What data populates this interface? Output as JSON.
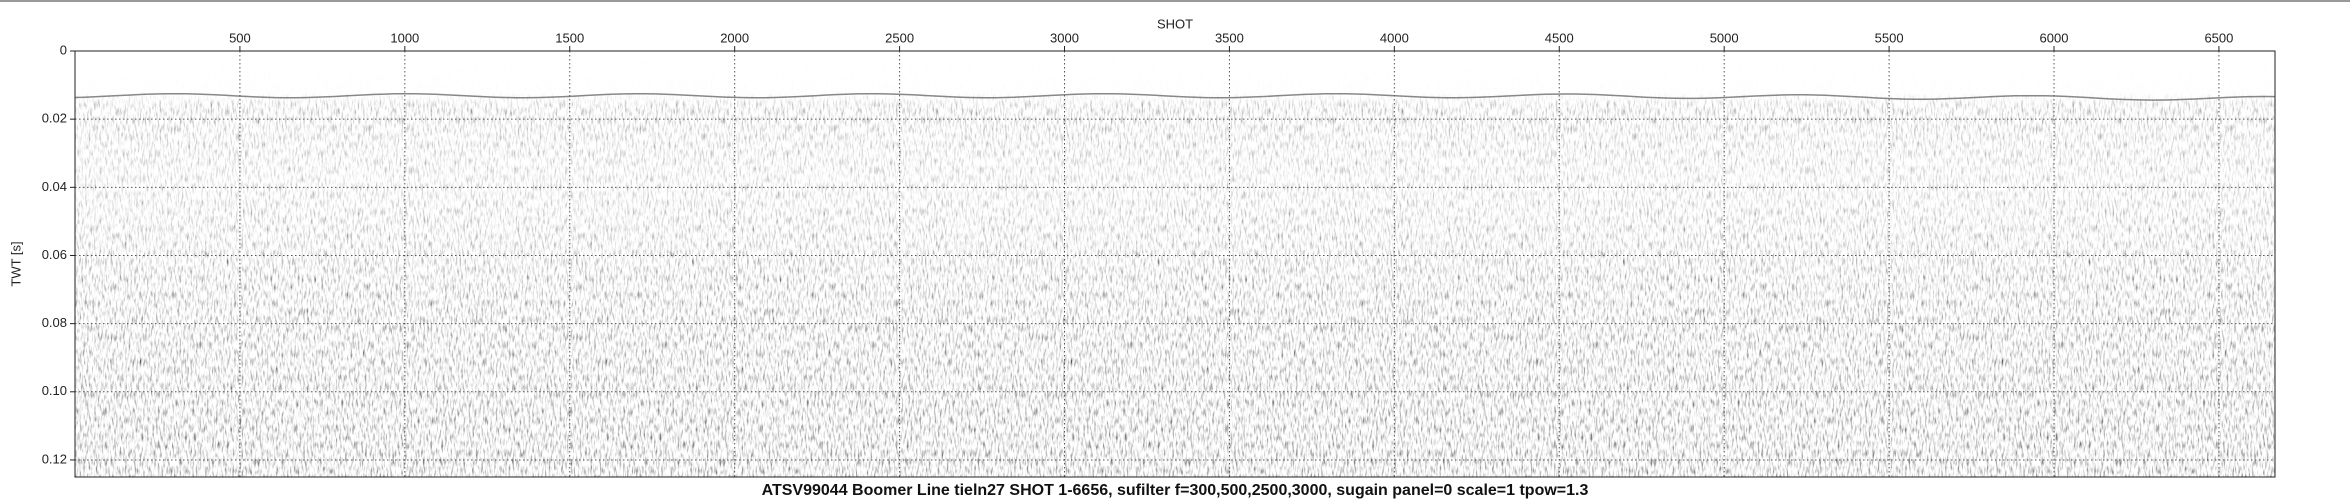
{
  "chart_data": {
    "type": "seismic",
    "title": "ATSV99044 Boomer Line tieln27 SHOT 1-6656,  sufilter f=300,500,2500,3000, sugain panel=0 scale=1 tpow=1.3",
    "xlabel": "SHOT",
    "ylabel": "TWT [s]",
    "xlim": [
      0,
      6670
    ],
    "xticks": [
      500,
      1000,
      1500,
      2000,
      2500,
      3000,
      3500,
      4000,
      4500,
      5000,
      5500,
      6000,
      6500
    ],
    "ylim": [
      0,
      0.125
    ],
    "yticks": [
      0,
      0.02,
      0.04,
      0.06,
      0.08,
      {
        "value": 0.1,
        "label": "0.10"
      },
      0.12
    ],
    "grid": true
  }
}
